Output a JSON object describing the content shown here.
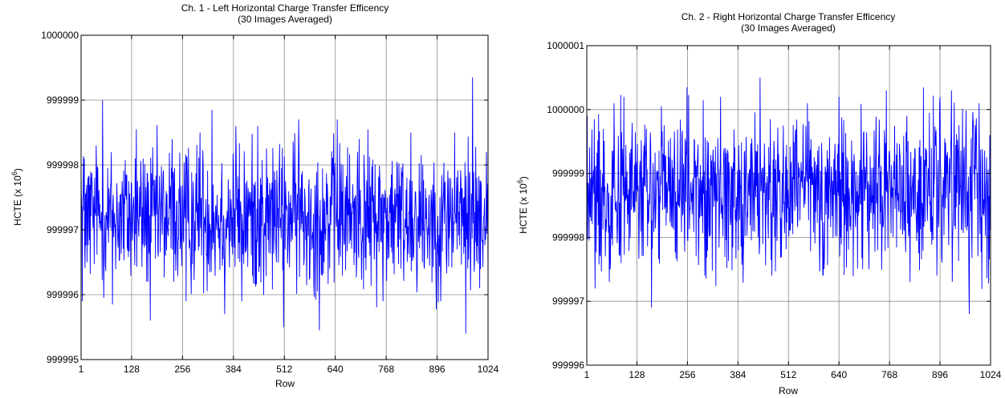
{
  "chart_data": [
    {
      "type": "line",
      "title": "Ch. 1 - Left Horizontal Charge Transfer Efficency",
      "subtitle": "(30 Images Averaged)",
      "xlabel": "Row",
      "ylabel_main": "HCTE (x 10",
      "ylabel_exp": "6",
      "ylabel_close": ")",
      "xlim": [
        1,
        1024
      ],
      "ylim": [
        999995,
        1000000
      ],
      "xticks": [
        1,
        128,
        256,
        384,
        512,
        640,
        768,
        896,
        1024
      ],
      "yticks": [
        999995,
        999996,
        999997,
        999998,
        999999,
        1000000
      ],
      "grid": true,
      "line_color": "#0000ff",
      "series": [
        {
          "mean": 999997.2,
          "noise_amplitude": 0.55,
          "points": [
            {
              "x": 1,
              "y": 999997.9
            },
            {
              "x": 4,
              "y": 999995.9
            },
            {
              "x": 9,
              "y": 999998.1
            },
            {
              "x": 16,
              "y": 999996.5
            },
            {
              "x": 40,
              "y": 999997.9
            },
            {
              "x": 55,
              "y": 999999.0
            },
            {
              "x": 80,
              "y": 999995.85
            },
            {
              "x": 140,
              "y": 999998.55
            },
            {
              "x": 175,
              "y": 999995.6
            },
            {
              "x": 230,
              "y": 999998.4
            },
            {
              "x": 265,
              "y": 999995.9
            },
            {
              "x": 300,
              "y": 999998.5
            },
            {
              "x": 330,
              "y": 999998.85
            },
            {
              "x": 362,
              "y": 999995.7
            },
            {
              "x": 390,
              "y": 999998.6
            },
            {
              "x": 405,
              "y": 999995.9
            },
            {
              "x": 445,
              "y": 999998.6
            },
            {
              "x": 460,
              "y": 999996.0
            },
            {
              "x": 510,
              "y": 999995.5
            },
            {
              "x": 548,
              "y": 999998.7
            },
            {
              "x": 600,
              "y": 999995.45
            },
            {
              "x": 645,
              "y": 999998.7
            },
            {
              "x": 700,
              "y": 999998.4
            },
            {
              "x": 760,
              "y": 999995.9
            },
            {
              "x": 830,
              "y": 999998.5
            },
            {
              "x": 905,
              "y": 999995.9
            },
            {
              "x": 940,
              "y": 999998.5
            },
            {
              "x": 968,
              "y": 999995.4
            },
            {
              "x": 985,
              "y": 999999.35
            },
            {
              "x": 1003,
              "y": 999996.1
            },
            {
              "x": 1020,
              "y": 999998.2
            }
          ]
        }
      ]
    },
    {
      "type": "line",
      "title": "Ch. 2 - Right Horizontal Charge Transfer Efficency",
      "subtitle": "(30 Images Averaged)",
      "xlabel": "Row",
      "ylabel_main": "HCTE (x 10",
      "ylabel_exp": "6",
      "ylabel_close": ")",
      "xlim": [
        1,
        1024
      ],
      "ylim": [
        999996,
        1000001
      ],
      "xticks": [
        1,
        128,
        256,
        384,
        512,
        640,
        768,
        896,
        1024
      ],
      "yticks": [
        999996,
        999997,
        999998,
        999999,
        1000000,
        1000001
      ],
      "grid": true,
      "line_color": "#0000ff",
      "series": [
        {
          "mean": 999998.7,
          "noise_amplitude": 0.6,
          "points": [
            {
              "x": 2,
              "y": 999999.9
            },
            {
              "x": 22,
              "y": 999997.2
            },
            {
              "x": 70,
              "y": 1000000.1
            },
            {
              "x": 95,
              "y": 1000000.2
            },
            {
              "x": 165,
              "y": 999996.9
            },
            {
              "x": 190,
              "y": 1000000.05
            },
            {
              "x": 255,
              "y": 1000000.35
            },
            {
              "x": 300,
              "y": 999997.4
            },
            {
              "x": 340,
              "y": 1000000.2
            },
            {
              "x": 440,
              "y": 1000000.5
            },
            {
              "x": 470,
              "y": 999997.4
            },
            {
              "x": 560,
              "y": 1000000.1
            },
            {
              "x": 600,
              "y": 999997.4
            },
            {
              "x": 640,
              "y": 1000000.2
            },
            {
              "x": 700,
              "y": 999997.5
            },
            {
              "x": 760,
              "y": 1000000.3
            },
            {
              "x": 820,
              "y": 999997.3
            },
            {
              "x": 895,
              "y": 1000000.1
            },
            {
              "x": 925,
              "y": 1000000.3
            },
            {
              "x": 970,
              "y": 999996.8
            },
            {
              "x": 995,
              "y": 1000000.1
            },
            {
              "x": 1022,
              "y": 999999.6
            }
          ]
        }
      ]
    }
  ]
}
